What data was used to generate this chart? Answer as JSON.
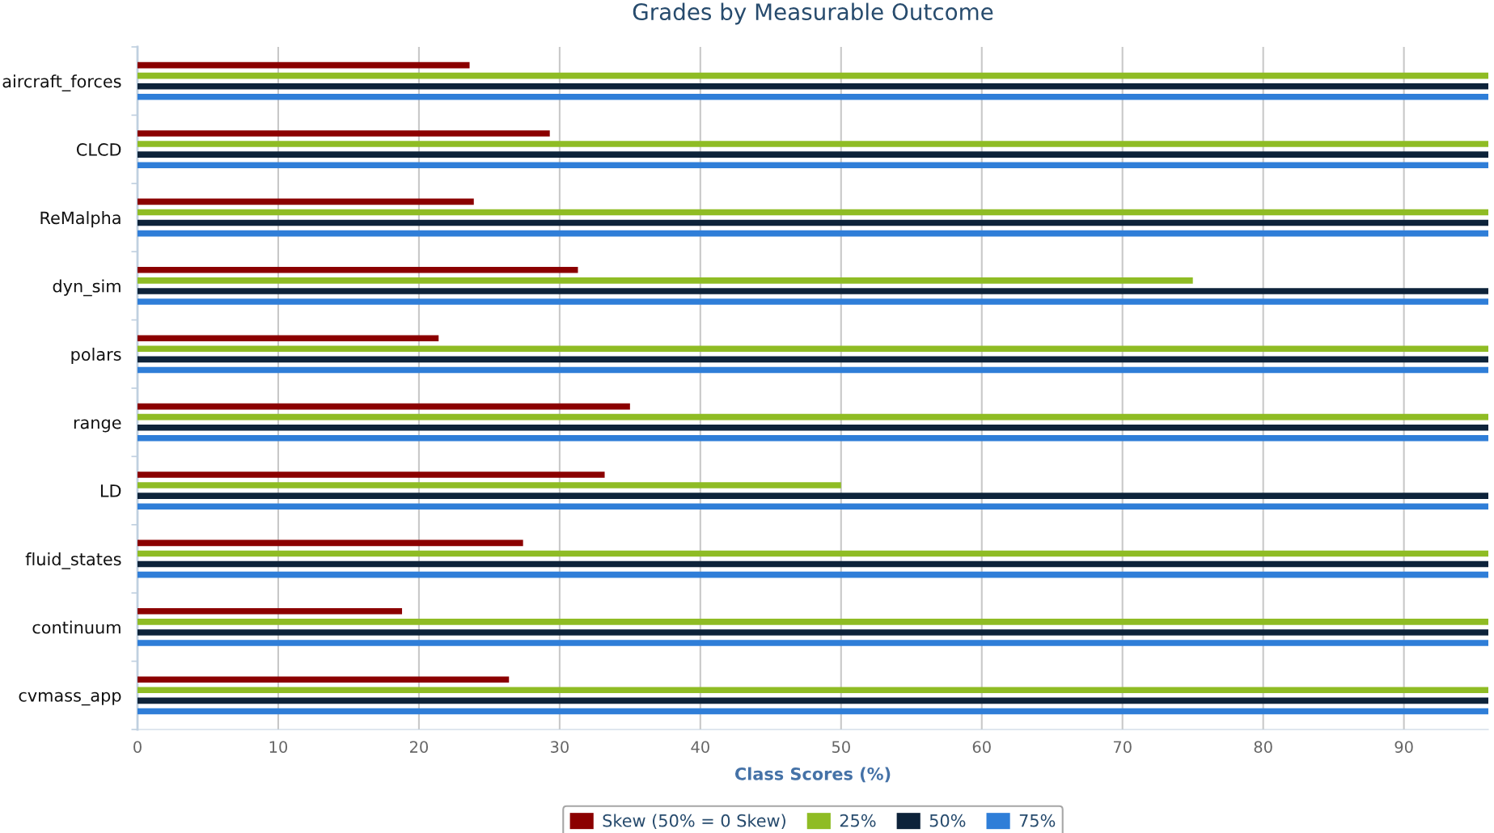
{
  "chart_data": {
    "type": "bar",
    "orientation": "horizontal",
    "title": "Grades by Measurable Outcome",
    "xlabel": "Class Scores (%)",
    "categories": [
      "aircraft_forces",
      "CLCD",
      "ReMalpha",
      "dyn_sim",
      "polars",
      "range",
      "LD",
      "fluid_states",
      "continuum",
      "cvmass_app"
    ],
    "series": [
      {
        "name": "Skew (50% = 0 Skew)",
        "color": "#8b0000",
        "values": [
          23.6,
          29.3,
          23.9,
          31.3,
          21.4,
          35.0,
          33.2,
          27.4,
          18.8,
          26.4
        ]
      },
      {
        "name": "25%",
        "color": "#8fbc24",
        "values": [
          96,
          96,
          96,
          75,
          96,
          96,
          50,
          96,
          96,
          96
        ]
      },
      {
        "name": "50%",
        "color": "#0d233a",
        "values": [
          96,
          96,
          96,
          96,
          96,
          96,
          96,
          96,
          96,
          96
        ]
      },
      {
        "name": "75%",
        "color": "#2f7ed8",
        "values": [
          96,
          96,
          96,
          96,
          96,
          96,
          96,
          96,
          96,
          96
        ]
      }
    ],
    "xlim": [
      0,
      96
    ],
    "xticks": [
      0,
      10,
      20,
      30,
      40,
      50,
      60,
      70,
      80,
      90
    ],
    "grid": "x",
    "legend": "bottom"
  }
}
